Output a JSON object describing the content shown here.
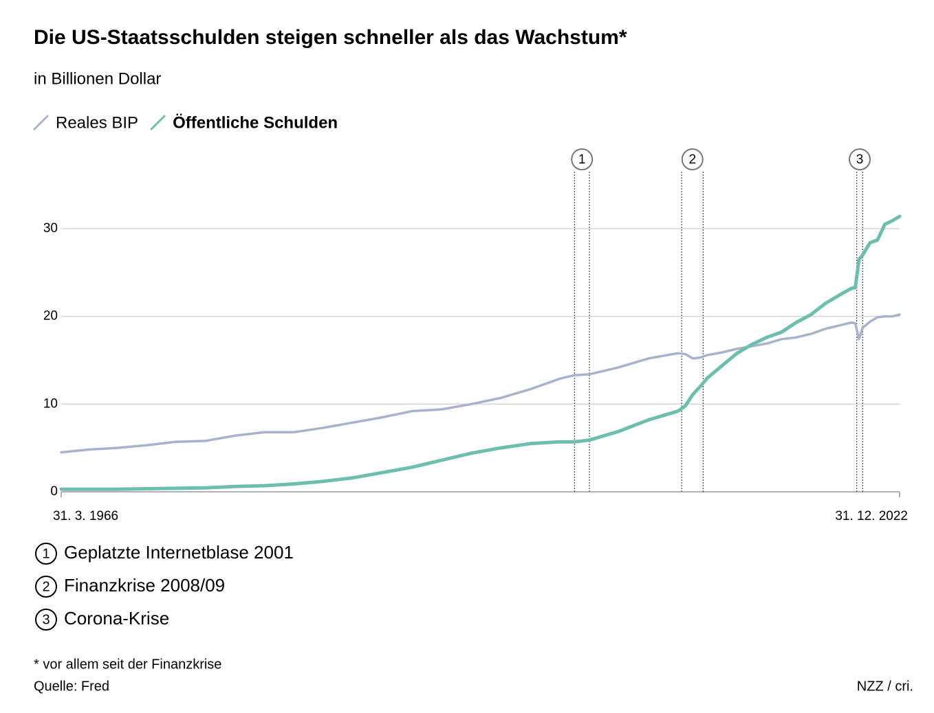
{
  "chart_data": {
    "type": "line",
    "title": "Die US-Staatsschulden steigen schneller als das Wachstum*",
    "subtitle": "in Billionen Dollar",
    "footnote": "* vor allem seit der Finanzkrise",
    "source": "Quelle: Fred",
    "credit": "NZZ / cri.",
    "x": [
      1966.25,
      1968,
      1970,
      1972,
      1974,
      1976,
      1978,
      1980,
      1982,
      1984,
      1986,
      1988,
      1990,
      1992,
      1994,
      1996,
      1998,
      2000,
      2001,
      2002,
      2004,
      2006,
      2008,
      2008.5,
      2009,
      2009.5,
      2010,
      2011,
      2012,
      2013,
      2014,
      2015,
      2016,
      2017,
      2018,
      2019,
      2019.75,
      2020,
      2020.25,
      2020.5,
      2021,
      2021.5,
      2022,
      2022.5,
      2023
    ],
    "series": [
      {
        "name": "Reales BIP",
        "color": "#a9b2cc",
        "values": [
          4.5,
          4.8,
          5.0,
          5.3,
          5.7,
          5.8,
          6.4,
          6.8,
          6.8,
          7.3,
          7.9,
          8.5,
          9.2,
          9.4,
          10.0,
          10.7,
          11.7,
          12.9,
          13.3,
          13.4,
          14.2,
          15.2,
          15.8,
          15.7,
          15.2,
          15.3,
          15.6,
          15.9,
          16.3,
          16.6,
          16.9,
          17.4,
          17.6,
          18.0,
          18.6,
          19.0,
          19.3,
          19.2,
          17.4,
          18.7,
          19.4,
          19.9,
          20.0,
          20.0,
          20.2
        ]
      },
      {
        "name": "Öffentliche Schulden",
        "color": "#6cbfac",
        "values": [
          0.3,
          0.3,
          0.3,
          0.35,
          0.4,
          0.45,
          0.6,
          0.7,
          0.9,
          1.2,
          1.6,
          2.2,
          2.8,
          3.6,
          4.4,
          5.0,
          5.5,
          5.7,
          5.7,
          5.9,
          6.9,
          8.2,
          9.2,
          9.8,
          11.1,
          12.0,
          13.0,
          14.4,
          15.8,
          16.8,
          17.6,
          18.2,
          19.3,
          20.2,
          21.5,
          22.5,
          23.2,
          23.3,
          26.5,
          27.0,
          28.4,
          28.7,
          30.5,
          30.9,
          31.4
        ]
      }
    ],
    "xlim": [
      1966.25,
      2023
    ],
    "xticks": [
      {
        "value": 1966.25,
        "label": "31. 3. 1966"
      },
      {
        "value": 2023,
        "label": "31. 12. 2022"
      }
    ],
    "ylim": [
      0,
      36
    ],
    "yticks": [
      0,
      10,
      20,
      30
    ],
    "grid": true,
    "annotations": [
      {
        "label": "1",
        "x": [
          2001,
          2002
        ],
        "text": "Geplatzte Internetblase 2001"
      },
      {
        "label": "2",
        "x": [
          2008.25,
          2009.7
        ],
        "text": "Finanzkrise 2008/09"
      },
      {
        "label": "3",
        "x": [
          2020.1,
          2020.5
        ],
        "text": "Corona-Krise"
      }
    ]
  }
}
